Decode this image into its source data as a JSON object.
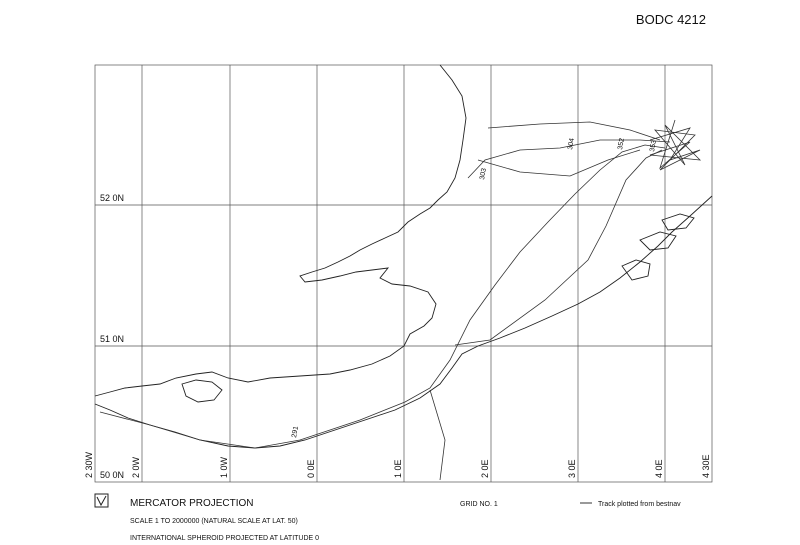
{
  "header": {
    "title": "BODC 4212"
  },
  "map": {
    "latitude_labels": [
      "52 0N",
      "51 0N",
      "50 0N"
    ],
    "longitude_labels": [
      "2 30W",
      "2 0W",
      "1 0W",
      "0 0E",
      "1 0E",
      "2 0E",
      "3 0E",
      "4 0E",
      "4 30E"
    ],
    "track_labels": [
      "291",
      "303",
      "304",
      "352",
      "353"
    ]
  },
  "footer": {
    "projection": "MERCATOR PROJECTION",
    "scale": "SCALE 1 TO 2000000 (NATURAL SCALE AT LAT. 50)",
    "spheroid": "INTERNATIONAL SPHEROID PROJECTED AT LATITUDE 0",
    "grid": "GRID NO. 1",
    "legend": "Track plotted from bestnav"
  }
}
